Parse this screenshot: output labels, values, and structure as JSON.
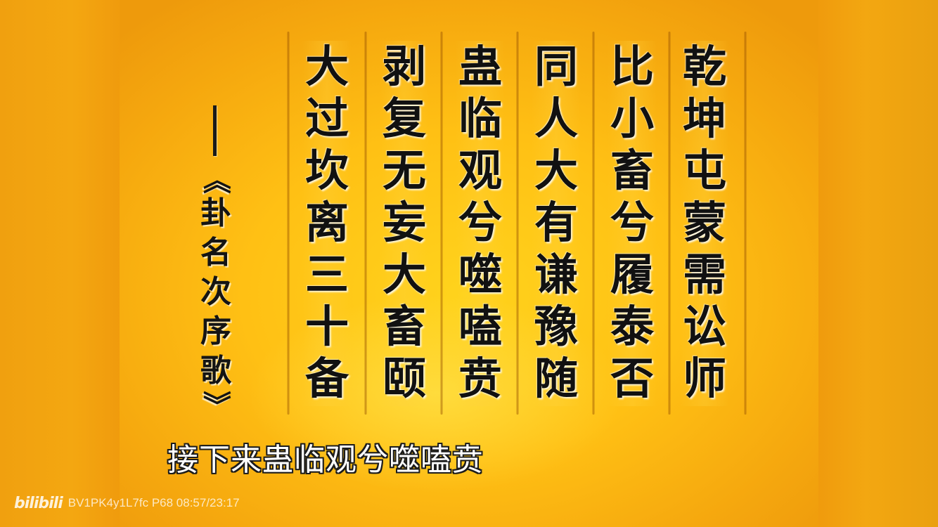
{
  "columns": [
    [
      "乾",
      "坤",
      "屯",
      "蒙",
      "需",
      "讼",
      "师"
    ],
    [
      "比",
      "小",
      "畜",
      "兮",
      "履",
      "泰",
      "否"
    ],
    [
      "同",
      "人",
      "大",
      "有",
      "谦",
      "豫",
      "随"
    ],
    [
      "蛊",
      "临",
      "观",
      "兮",
      "噬",
      "嗑",
      "贲"
    ],
    [
      "剥",
      "复",
      "无",
      "妄",
      "大",
      "畜",
      "颐"
    ],
    [
      "大",
      "过",
      "坎",
      "离",
      "三",
      "十",
      "备"
    ]
  ],
  "title": {
    "open_bracket": "《",
    "chars": [
      "卦",
      "名",
      "次",
      "序",
      "歌"
    ],
    "close_bracket": "》"
  },
  "subtitle": "接下来蛊临观兮噬嗑贲",
  "watermark": {
    "logo": "bilibili",
    "info": "BV1PK4y1L7fc P68 08:57/23:17"
  }
}
